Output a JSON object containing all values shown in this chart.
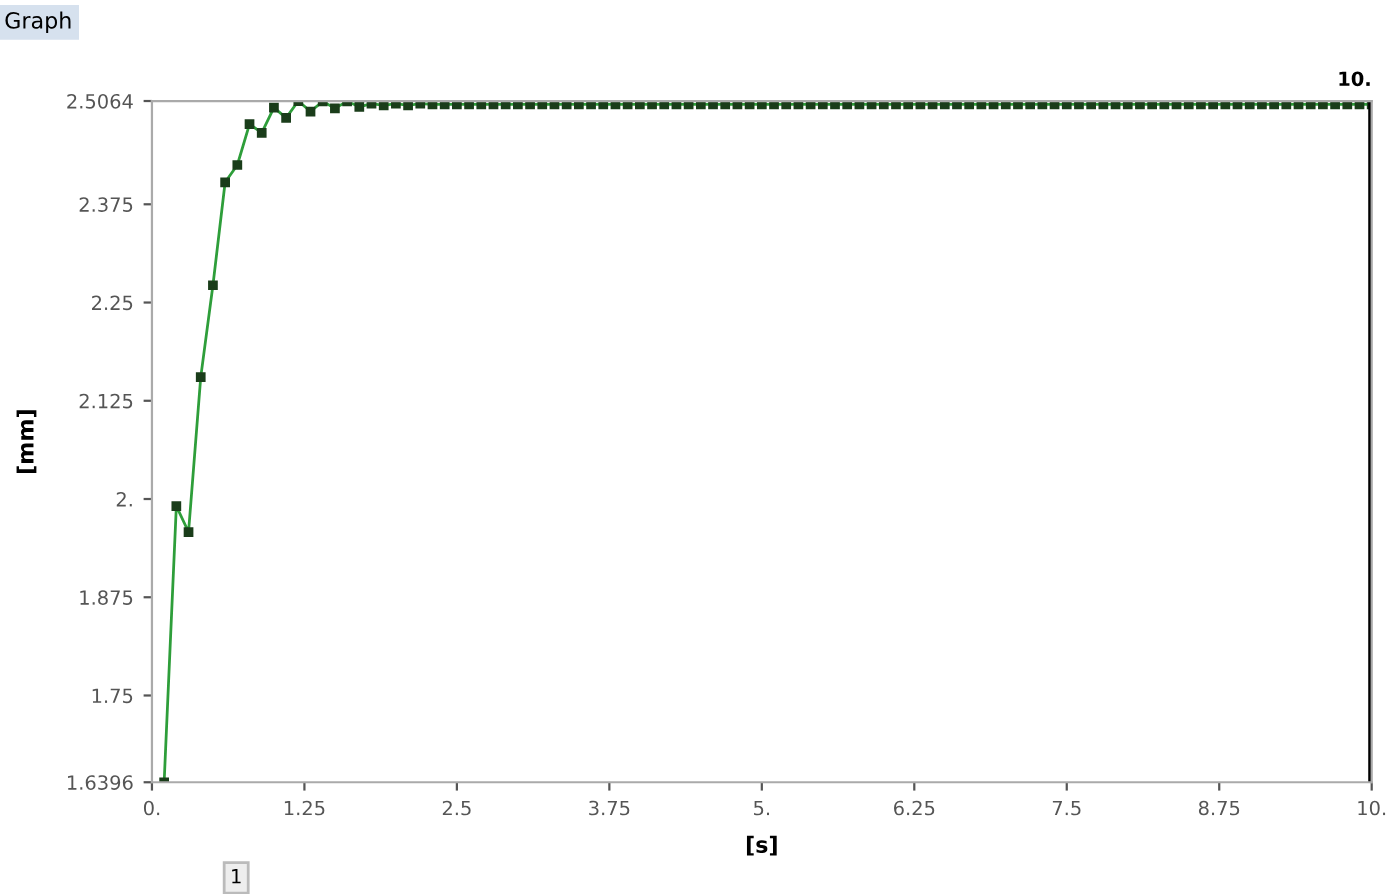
{
  "chart_data": {
    "type": "line",
    "title": "Graph",
    "xlabel": "[s]",
    "ylabel": "[mm]",
    "annotations": [
      "1"
    ],
    "xlim": [
      0,
      10
    ],
    "ylim": [
      1.6396,
      2.5064
    ],
    "xticks": [
      {
        "value": 0,
        "label": "0."
      },
      1.25,
      2.5,
      3.75,
      {
        "value": 5,
        "label": "5."
      },
      6.25,
      7.5,
      8.75,
      {
        "value": 10,
        "label": "10."
      }
    ],
    "yticks": [
      1.6396,
      1.75,
      1.875,
      {
        "value": 2,
        "label": "2."
      },
      2.125,
      2.25,
      2.375,
      2.5064
    ],
    "ref_lines": [
      {
        "axis": "x",
        "value": 10,
        "label": "10.",
        "color": "#000000"
      }
    ],
    "grid": false,
    "legend": false,
    "marker": "square",
    "line_style": "solid",
    "x": [
      0.1,
      0.2,
      0.3,
      0.4,
      0.5,
      0.6,
      0.7,
      0.8,
      0.9,
      1.0,
      1.1,
      1.2,
      1.3,
      1.4,
      1.5,
      1.6,
      1.7,
      1.8,
      1.9,
      2.0,
      2.1,
      2.2,
      2.3,
      2.4,
      2.5,
      2.6,
      2.7,
      2.8,
      2.9,
      3.0,
      3.1,
      3.2,
      3.3,
      3.4,
      3.5,
      3.6,
      3.7,
      3.8,
      3.9,
      4.0,
      4.1,
      4.2,
      4.3,
      4.4,
      4.5,
      4.6,
      4.7,
      4.8,
      4.9,
      5.0,
      5.1,
      5.2,
      5.3,
      5.4,
      5.5,
      5.6,
      5.7,
      5.8,
      5.9,
      6.0,
      6.1,
      6.2,
      6.3,
      6.4,
      6.5,
      6.6,
      6.7,
      6.8,
      6.9,
      7.0,
      7.1,
      7.2,
      7.3,
      7.4,
      7.5,
      7.6,
      7.7,
      7.8,
      7.9,
      8.0,
      8.1,
      8.2,
      8.3,
      8.4,
      8.5,
      8.6,
      8.7,
      8.8,
      8.9,
      9.0,
      9.1,
      9.2,
      9.3,
      9.4,
      9.5,
      9.6,
      9.7,
      9.8,
      9.9,
      10.0
    ],
    "series": [
      {
        "color": "#2e9e3a",
        "values": [
          1.6396,
          1.991,
          1.958,
          2.155,
          2.272,
          2.403,
          2.425,
          2.477,
          2.466,
          2.498,
          2.485,
          2.5064,
          2.493,
          2.506,
          2.497,
          2.506,
          2.499,
          2.503,
          2.501,
          2.503,
          2.501,
          2.503,
          2.502,
          2.502,
          2.502,
          2.502,
          2.502,
          2.502,
          2.502,
          2.502,
          2.502,
          2.502,
          2.502,
          2.502,
          2.502,
          2.502,
          2.502,
          2.502,
          2.502,
          2.502,
          2.502,
          2.502,
          2.502,
          2.502,
          2.502,
          2.502,
          2.502,
          2.502,
          2.502,
          2.502,
          2.502,
          2.502,
          2.502,
          2.502,
          2.502,
          2.502,
          2.502,
          2.502,
          2.502,
          2.502,
          2.502,
          2.502,
          2.502,
          2.502,
          2.502,
          2.502,
          2.502,
          2.502,
          2.502,
          2.502,
          2.502,
          2.502,
          2.502,
          2.502,
          2.502,
          2.502,
          2.502,
          2.502,
          2.502,
          2.502,
          2.502,
          2.502,
          2.502,
          2.502,
          2.502,
          2.502,
          2.502,
          2.502,
          2.502,
          2.502,
          2.502,
          2.502,
          2.502,
          2.502,
          2.502,
          2.502,
          2.502,
          2.502,
          2.502,
          2.502
        ]
      }
    ]
  }
}
